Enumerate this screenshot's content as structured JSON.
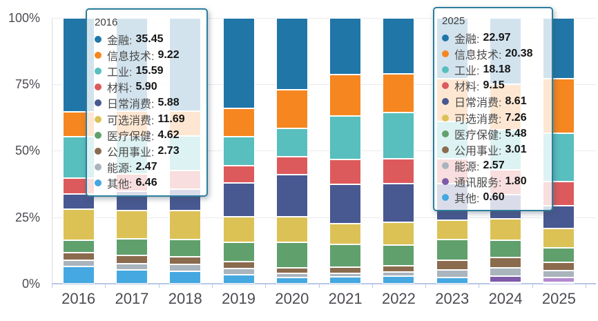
{
  "axes": {
    "y_tick_labels": [
      "0%",
      "25%",
      "50%",
      "75%",
      "100%"
    ],
    "x_tick_labels": [
      "2016",
      "2017",
      "2018",
      "2019",
      "2020",
      "2021",
      "2022",
      "2023",
      "2024",
      "2025"
    ]
  },
  "colors": {
    "axis_line": "#b8c6e6",
    "gridline": "#eaeaef",
    "y_axis_line": "#dcdce2",
    "tick_label": "#4e4a52",
    "tooltip_border": "#2b7e9d"
  },
  "chart_data": {
    "type": "bar",
    "stacked": true,
    "percent_normalized": true,
    "title": "",
    "xlabel": "",
    "ylabel": "",
    "ylim": [
      0,
      100
    ],
    "grid": "horizontal",
    "legend_position": "none",
    "categories": [
      "2016",
      "2017",
      "2018",
      "2019",
      "2020",
      "2021",
      "2022",
      "2023",
      "2024",
      "2025"
    ],
    "stack_order_bottom_to_top": [
      "其他",
      "通讯服务",
      "能源",
      "公用事业",
      "医疗保健",
      "可选消费",
      "日常消费",
      "材料",
      "工业",
      "信息技术",
      "金融"
    ],
    "series": [
      {
        "name": "金融",
        "color": "#2176a8",
        "values": [
          35.45,
          35.2,
          35.0,
          34.2,
          27.0,
          21.5,
          21.0,
          23.0,
          25.1,
          22.97
        ]
      },
      {
        "name": "信息技术",
        "color": "#f6861f",
        "values": [
          9.22,
          9.5,
          9.5,
          10.5,
          14.7,
          15.4,
          14.7,
          16.0,
          17.0,
          20.38
        ]
      },
      {
        "name": "工业",
        "color": "#58bebe",
        "values": [
          15.59,
          14.0,
          13.0,
          10.8,
          10.6,
          16.4,
          17.3,
          14.0,
          15.0,
          18.18
        ]
      },
      {
        "name": "材料",
        "color": "#dd5a5c",
        "values": [
          5.9,
          6.5,
          7.0,
          6.7,
          6.7,
          9.3,
          9.3,
          9.5,
          9.4,
          9.15
        ]
      },
      {
        "name": "日常消费",
        "color": "#485890",
        "values": [
          5.88,
          7.3,
          8.0,
          12.6,
          15.8,
          14.7,
          14.5,
          13.5,
          9.0,
          8.61
        ]
      },
      {
        "name": "可选消费",
        "color": "#dcc256",
        "values": [
          11.69,
          10.6,
          10.8,
          9.7,
          9.7,
          7.8,
          8.7,
          7.5,
          8.2,
          7.26
        ]
      },
      {
        "name": "医疗保健",
        "color": "#60a06c",
        "values": [
          4.62,
          6.3,
          6.5,
          7.2,
          9.4,
          8.7,
          7.8,
          7.8,
          6.5,
          5.48
        ]
      },
      {
        "name": "公用事业",
        "color": "#8b6b4e",
        "values": [
          2.73,
          3.0,
          3.0,
          2.6,
          2.3,
          2.2,
          2.2,
          3.5,
          3.9,
          3.01
        ]
      },
      {
        "name": "能源",
        "color": "#a9b4bd",
        "values": [
          2.47,
          2.4,
          2.6,
          2.2,
          1.4,
          1.3,
          1.7,
          2.9,
          3.0,
          2.57
        ]
      },
      {
        "name": "通讯服务",
        "color": "#7e5aa8",
        "values": [
          0,
          0,
          0,
          0,
          0,
          0,
          0,
          0,
          2.3,
          1.8
        ]
      },
      {
        "name": "其他",
        "color": "#45a8e0",
        "values": [
          6.46,
          5.2,
          4.6,
          3.5,
          2.4,
          2.7,
          2.8,
          2.3,
          0.6,
          0.6
        ]
      }
    ],
    "segment_color_overrides": [
      {
        "series": "通讯服务",
        "category": "2025",
        "color": "#b289ce"
      }
    ]
  },
  "tooltips": [
    {
      "title": "2016",
      "rows": [
        {
          "label": "金融",
          "value": "35.45",
          "color": "#2176a8"
        },
        {
          "label": "信息技术",
          "value": "9.22",
          "color": "#f6861f"
        },
        {
          "label": "工业",
          "value": "15.59",
          "color": "#58bebe"
        },
        {
          "label": "材料",
          "value": "5.90",
          "color": "#dd5a5c"
        },
        {
          "label": "日常消费",
          "value": "5.88",
          "color": "#485890"
        },
        {
          "label": "可选消费",
          "value": "11.69",
          "color": "#dcc256"
        },
        {
          "label": "医疗保健",
          "value": "4.62",
          "color": "#60a06c"
        },
        {
          "label": "公用事业",
          "value": "2.73",
          "color": "#8b6b4e"
        },
        {
          "label": "能源",
          "value": "2.47",
          "color": "#a9b4bd"
        },
        {
          "label": "其他",
          "value": "6.46",
          "color": "#45a8e0"
        }
      ]
    },
    {
      "title": "2025",
      "rows": [
        {
          "label": "金融",
          "value": "22.97",
          "color": "#2176a8"
        },
        {
          "label": "信息技术",
          "value": "20.38",
          "color": "#f6861f"
        },
        {
          "label": "工业",
          "value": "18.18",
          "color": "#58bebe"
        },
        {
          "label": "材料",
          "value": "9.15",
          "color": "#dd5a5c"
        },
        {
          "label": "日常消费",
          "value": "8.61",
          "color": "#485890"
        },
        {
          "label": "可选消费",
          "value": "7.26",
          "color": "#dcc256"
        },
        {
          "label": "医疗保健",
          "value": "5.48",
          "color": "#60a06c"
        },
        {
          "label": "公用事业",
          "value": "3.01",
          "color": "#8b6b4e"
        },
        {
          "label": "能源",
          "value": "2.57",
          "color": "#a9b4bd"
        },
        {
          "label": "通讯服务",
          "value": "1.80",
          "color": "#7e5aa8"
        },
        {
          "label": "其他",
          "value": "0.60",
          "color": "#45a8e0"
        }
      ]
    }
  ]
}
